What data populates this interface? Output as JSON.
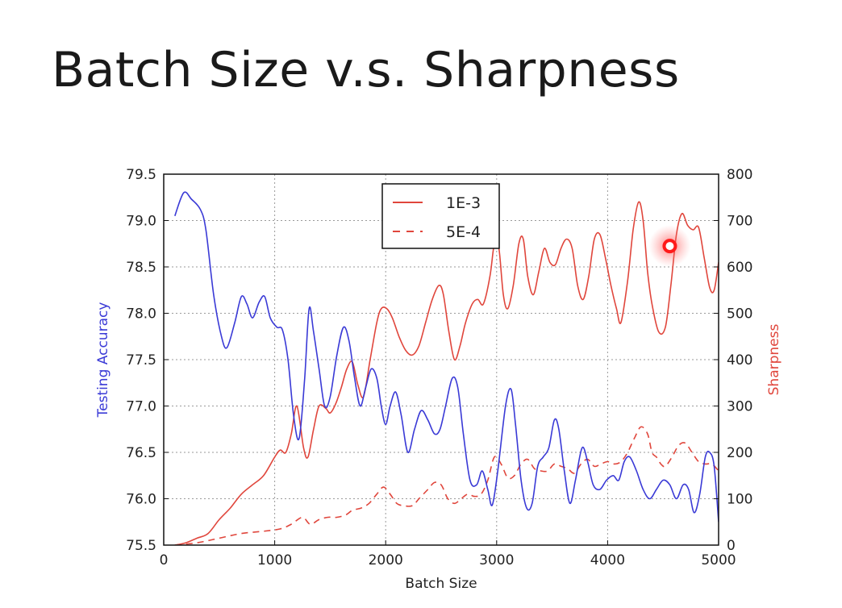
{
  "slide": {
    "title": "Batch Size v.s. Sharpness"
  },
  "colors": {
    "accuracy": "#3a3ad6",
    "sharpness": "#e0463c",
    "grid": "#9a9a9a",
    "cursor": "#ff1a1a"
  },
  "chart_data": {
    "type": "line",
    "title": "",
    "xlabel": "Batch Size",
    "ylabel_left": "Testing Accuracy",
    "ylabel_right": "Sharpness",
    "xlim": [
      0,
      5000
    ],
    "ylim_left": [
      75.5,
      79.5
    ],
    "ylim_right": [
      0,
      800
    ],
    "x_ticks": [
      "0",
      "1000",
      "2000",
      "3000",
      "4000",
      "5000"
    ],
    "y_ticks_left": [
      "75.5",
      "76.0",
      "76.5",
      "77.0",
      "77.5",
      "78.0",
      "78.5",
      "79.0",
      "79.5"
    ],
    "y_ticks_right": [
      "0",
      "100",
      "200",
      "300",
      "400",
      "500",
      "600",
      "700",
      "800"
    ],
    "grid": true,
    "legend": {
      "placement": "top-center",
      "entries": [
        "1E-3",
        "5E-4"
      ]
    },
    "cursor_marker": {
      "x": 4560,
      "y_right": 645
    },
    "series": [
      {
        "name": "",
        "axis": "left",
        "style": "solid",
        "points": [
          [
            100,
            79.05
          ],
          [
            180,
            79.3
          ],
          [
            250,
            79.23
          ],
          [
            330,
            79.12
          ],
          [
            380,
            78.9
          ],
          [
            450,
            78.2
          ],
          [
            520,
            77.75
          ],
          [
            570,
            77.63
          ],
          [
            640,
            77.9
          ],
          [
            700,
            78.18
          ],
          [
            750,
            78.1
          ],
          [
            800,
            77.95
          ],
          [
            860,
            78.12
          ],
          [
            910,
            78.18
          ],
          [
            960,
            77.95
          ],
          [
            1020,
            77.85
          ],
          [
            1070,
            77.82
          ],
          [
            1120,
            77.5
          ],
          [
            1170,
            76.9
          ],
          [
            1220,
            76.65
          ],
          [
            1270,
            77.3
          ],
          [
            1310,
            78.05
          ],
          [
            1350,
            77.8
          ],
          [
            1400,
            77.4
          ],
          [
            1450,
            77.0
          ],
          [
            1500,
            77.1
          ],
          [
            1560,
            77.55
          ],
          [
            1620,
            77.85
          ],
          [
            1670,
            77.7
          ],
          [
            1720,
            77.3
          ],
          [
            1770,
            77.0
          ],
          [
            1820,
            77.2
          ],
          [
            1870,
            77.4
          ],
          [
            1920,
            77.3
          ],
          [
            1960,
            77.0
          ],
          [
            2000,
            76.8
          ],
          [
            2040,
            77.0
          ],
          [
            2090,
            77.15
          ],
          [
            2140,
            76.9
          ],
          [
            2200,
            76.5
          ],
          [
            2260,
            76.75
          ],
          [
            2320,
            76.95
          ],
          [
            2380,
            76.85
          ],
          [
            2440,
            76.7
          ],
          [
            2490,
            76.75
          ],
          [
            2540,
            77.0
          ],
          [
            2600,
            77.3
          ],
          [
            2650,
            77.2
          ],
          [
            2700,
            76.7
          ],
          [
            2760,
            76.2
          ],
          [
            2820,
            76.15
          ],
          [
            2870,
            76.3
          ],
          [
            2920,
            76.1
          ],
          [
            2960,
            75.93
          ],
          [
            3010,
            76.3
          ],
          [
            3080,
            77.0
          ],
          [
            3130,
            77.18
          ],
          [
            3170,
            76.8
          ],
          [
            3220,
            76.2
          ],
          [
            3270,
            75.9
          ],
          [
            3320,
            75.95
          ],
          [
            3370,
            76.35
          ],
          [
            3420,
            76.45
          ],
          [
            3470,
            76.55
          ],
          [
            3520,
            76.85
          ],
          [
            3560,
            76.75
          ],
          [
            3610,
            76.3
          ],
          [
            3660,
            75.95
          ],
          [
            3710,
            76.2
          ],
          [
            3770,
            76.55
          ],
          [
            3820,
            76.4
          ],
          [
            3870,
            76.15
          ],
          [
            3930,
            76.1
          ],
          [
            3990,
            76.2
          ],
          [
            4050,
            76.25
          ],
          [
            4100,
            76.2
          ],
          [
            4150,
            76.4
          ],
          [
            4200,
            76.45
          ],
          [
            4260,
            76.3
          ],
          [
            4320,
            76.1
          ],
          [
            4380,
            76.0
          ],
          [
            4440,
            76.1
          ],
          [
            4500,
            76.2
          ],
          [
            4560,
            76.15
          ],
          [
            4620,
            76.0
          ],
          [
            4680,
            76.15
          ],
          [
            4730,
            76.1
          ],
          [
            4780,
            75.85
          ],
          [
            4830,
            76.05
          ],
          [
            4880,
            76.45
          ],
          [
            4920,
            76.5
          ],
          [
            4960,
            76.35
          ],
          [
            5000,
            75.75
          ]
        ]
      },
      {
        "name": "1E-3",
        "axis": "right",
        "style": "solid",
        "points": [
          [
            100,
            0
          ],
          [
            200,
            5
          ],
          [
            300,
            15
          ],
          [
            400,
            25
          ],
          [
            500,
            55
          ],
          [
            600,
            80
          ],
          [
            700,
            110
          ],
          [
            800,
            130
          ],
          [
            900,
            150
          ],
          [
            1000,
            190
          ],
          [
            1050,
            205
          ],
          [
            1100,
            200
          ],
          [
            1150,
            240
          ],
          [
            1200,
            300
          ],
          [
            1260,
            210
          ],
          [
            1300,
            190
          ],
          [
            1350,
            250
          ],
          [
            1400,
            300
          ],
          [
            1460,
            295
          ],
          [
            1500,
            285
          ],
          [
            1550,
            305
          ],
          [
            1600,
            340
          ],
          [
            1650,
            380
          ],
          [
            1700,
            395
          ],
          [
            1750,
            345
          ],
          [
            1800,
            320
          ],
          [
            1860,
            400
          ],
          [
            1920,
            480
          ],
          [
            1960,
            510
          ],
          [
            2010,
            510
          ],
          [
            2060,
            490
          ],
          [
            2120,
            450
          ],
          [
            2180,
            420
          ],
          [
            2240,
            410
          ],
          [
            2300,
            430
          ],
          [
            2360,
            480
          ],
          [
            2420,
            530
          ],
          [
            2480,
            560
          ],
          [
            2520,
            540
          ],
          [
            2570,
            460
          ],
          [
            2620,
            400
          ],
          [
            2670,
            430
          ],
          [
            2720,
            480
          ],
          [
            2780,
            520
          ],
          [
            2830,
            530
          ],
          [
            2880,
            520
          ],
          [
            2940,
            580
          ],
          [
            2980,
            650
          ],
          [
            3020,
            640
          ],
          [
            3060,
            540
          ],
          [
            3100,
            510
          ],
          [
            3150,
            560
          ],
          [
            3200,
            650
          ],
          [
            3240,
            660
          ],
          [
            3280,
            580
          ],
          [
            3330,
            540
          ],
          [
            3380,
            590
          ],
          [
            3430,
            640
          ],
          [
            3480,
            610
          ],
          [
            3530,
            605
          ],
          [
            3580,
            640
          ],
          [
            3630,
            660
          ],
          [
            3680,
            640
          ],
          [
            3730,
            560
          ],
          [
            3780,
            530
          ],
          [
            3830,
            580
          ],
          [
            3880,
            660
          ],
          [
            3930,
            670
          ],
          [
            3980,
            620
          ],
          [
            4030,
            560
          ],
          [
            4080,
            510
          ],
          [
            4120,
            480
          ],
          [
            4180,
            570
          ],
          [
            4230,
            680
          ],
          [
            4280,
            740
          ],
          [
            4320,
            700
          ],
          [
            4360,
            590
          ],
          [
            4400,
            520
          ],
          [
            4460,
            460
          ],
          [
            4520,
            470
          ],
          [
            4570,
            560
          ],
          [
            4620,
            670
          ],
          [
            4670,
            715
          ],
          [
            4720,
            690
          ],
          [
            4770,
            680
          ],
          [
            4820,
            685
          ],
          [
            4870,
            620
          ],
          [
            4920,
            555
          ],
          [
            4960,
            550
          ],
          [
            5000,
            610
          ]
        ]
      },
      {
        "name": "5E-4",
        "axis": "right",
        "style": "dashed",
        "points": [
          [
            100,
            0
          ],
          [
            300,
            5
          ],
          [
            500,
            15
          ],
          [
            700,
            25
          ],
          [
            900,
            30
          ],
          [
            1050,
            35
          ],
          [
            1150,
            45
          ],
          [
            1250,
            60
          ],
          [
            1320,
            45
          ],
          [
            1400,
            55
          ],
          [
            1480,
            60
          ],
          [
            1560,
            60
          ],
          [
            1640,
            65
          ],
          [
            1700,
            75
          ],
          [
            1780,
            80
          ],
          [
            1850,
            90
          ],
          [
            1920,
            110
          ],
          [
            1980,
            125
          ],
          [
            2040,
            110
          ],
          [
            2100,
            90
          ],
          [
            2160,
            85
          ],
          [
            2240,
            85
          ],
          [
            2300,
            100
          ],
          [
            2380,
            120
          ],
          [
            2440,
            135
          ],
          [
            2500,
            130
          ],
          [
            2560,
            100
          ],
          [
            2620,
            90
          ],
          [
            2680,
            100
          ],
          [
            2740,
            110
          ],
          [
            2800,
            105
          ],
          [
            2860,
            110
          ],
          [
            2920,
            140
          ],
          [
            2980,
            190
          ],
          [
            3040,
            175
          ],
          [
            3100,
            145
          ],
          [
            3160,
            150
          ],
          [
            3220,
            175
          ],
          [
            3280,
            185
          ],
          [
            3340,
            165
          ],
          [
            3400,
            160
          ],
          [
            3460,
            160
          ],
          [
            3520,
            175
          ],
          [
            3580,
            170
          ],
          [
            3640,
            165
          ],
          [
            3700,
            155
          ],
          [
            3760,
            175
          ],
          [
            3820,
            185
          ],
          [
            3880,
            170
          ],
          [
            3940,
            175
          ],
          [
            4000,
            180
          ],
          [
            4060,
            175
          ],
          [
            4120,
            180
          ],
          [
            4180,
            200
          ],
          [
            4240,
            230
          ],
          [
            4300,
            255
          ],
          [
            4360,
            240
          ],
          [
            4400,
            200
          ],
          [
            4440,
            190
          ],
          [
            4480,
            175
          ],
          [
            4520,
            170
          ],
          [
            4580,
            190
          ],
          [
            4640,
            215
          ],
          [
            4700,
            220
          ],
          [
            4760,
            200
          ],
          [
            4820,
            180
          ],
          [
            4880,
            175
          ],
          [
            4940,
            175
          ],
          [
            5000,
            160
          ]
        ]
      }
    ]
  }
}
